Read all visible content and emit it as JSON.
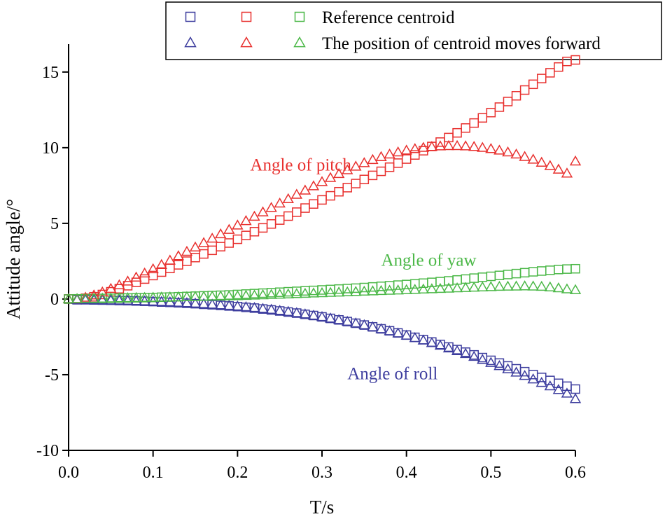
{
  "chart_data": {
    "type": "scatter",
    "title": "",
    "xlabel": "T/s",
    "ylabel": "Attitude angle/°",
    "xlim": [
      0,
      0.6
    ],
    "ylim": [
      -10,
      18
    ],
    "xticks": [
      0,
      0.1,
      0.2,
      0.3,
      0.4,
      0.5,
      0.6
    ],
    "xtick_labels": [
      "0.0",
      "0.1",
      "0.2",
      "0.3",
      "0.4",
      "0.5",
      "0.6"
    ],
    "yticks": [
      -10,
      -5,
      0,
      5,
      10,
      15
    ],
    "ytick_labels": [
      "-10",
      "-5",
      "0",
      "5",
      "10",
      "15"
    ],
    "grid": false,
    "legend_position": "top-right",
    "legend_rows": [
      {
        "text": "Reference centroid",
        "marker": "square"
      },
      {
        "text": "The position of centroid moves forward",
        "marker": "triangle"
      }
    ],
    "colors": {
      "roll": "#3d3d9e",
      "pitch": "#e8302e",
      "yaw": "#4cb848"
    },
    "x": [
      0.0,
      0.01,
      0.02,
      0.03,
      0.04,
      0.05,
      0.06,
      0.07,
      0.08,
      0.09,
      0.1,
      0.11,
      0.12,
      0.13,
      0.14,
      0.15,
      0.16,
      0.17,
      0.18,
      0.19,
      0.2,
      0.21,
      0.22,
      0.23,
      0.24,
      0.25,
      0.26,
      0.27,
      0.28,
      0.29,
      0.3,
      0.31,
      0.32,
      0.33,
      0.34,
      0.35,
      0.36,
      0.37,
      0.38,
      0.39,
      0.4,
      0.41,
      0.42,
      0.43,
      0.44,
      0.45,
      0.46,
      0.47,
      0.48,
      0.49,
      0.5,
      0.51,
      0.52,
      0.53,
      0.54,
      0.55,
      0.56,
      0.57,
      0.58,
      0.59,
      0.6
    ],
    "series": [
      {
        "group": "roll",
        "marker": "square",
        "values": [
          0.0,
          -0.05,
          -0.05,
          -0.06,
          -0.07,
          -0.08,
          -0.1,
          -0.11,
          -0.13,
          -0.15,
          -0.17,
          -0.2,
          -0.22,
          -0.25,
          -0.28,
          -0.31,
          -0.35,
          -0.38,
          -0.42,
          -0.46,
          -0.5,
          -0.55,
          -0.6,
          -0.66,
          -0.72,
          -0.79,
          -0.86,
          -0.93,
          -1.01,
          -1.09,
          -1.18,
          -1.28,
          -1.38,
          -1.49,
          -1.6,
          -1.72,
          -1.84,
          -1.97,
          -2.1,
          -2.24,
          -2.38,
          -2.53,
          -2.68,
          -2.84,
          -3.0,
          -3.17,
          -3.34,
          -3.51,
          -3.69,
          -3.87,
          -4.05,
          -4.23,
          -4.42,
          -4.61,
          -4.8,
          -4.99,
          -5.18,
          -5.38,
          -5.57,
          -5.76,
          -5.95
        ]
      },
      {
        "group": "pitch",
        "marker": "square",
        "values": [
          0.0,
          0.0,
          0.05,
          0.15,
          0.3,
          0.48,
          0.68,
          0.88,
          1.1,
          1.32,
          1.55,
          1.78,
          2.02,
          2.26,
          2.5,
          2.74,
          2.98,
          3.22,
          3.46,
          3.7,
          3.95,
          4.2,
          4.45,
          4.7,
          4.96,
          5.22,
          5.48,
          5.74,
          6.01,
          6.28,
          6.55,
          6.82,
          7.09,
          7.36,
          7.63,
          7.9,
          8.17,
          8.44,
          8.71,
          8.98,
          9.25,
          9.52,
          9.8,
          10.08,
          10.37,
          10.67,
          10.98,
          11.3,
          11.63,
          11.97,
          12.32,
          12.68,
          13.05,
          13.43,
          13.81,
          14.19,
          14.57,
          14.95,
          15.33,
          15.7,
          15.8
        ]
      },
      {
        "group": "yaw",
        "marker": "square",
        "values": [
          0.0,
          0.01,
          0.02,
          0.03,
          0.04,
          0.05,
          0.06,
          0.07,
          0.08,
          0.09,
          0.1,
          0.12,
          0.13,
          0.15,
          0.17,
          0.19,
          0.21,
          0.23,
          0.25,
          0.27,
          0.3,
          0.33,
          0.36,
          0.39,
          0.42,
          0.45,
          0.48,
          0.51,
          0.54,
          0.57,
          0.6,
          0.63,
          0.66,
          0.69,
          0.72,
          0.76,
          0.8,
          0.84,
          0.88,
          0.92,
          0.96,
          1.0,
          1.05,
          1.1,
          1.15,
          1.2,
          1.26,
          1.32,
          1.38,
          1.44,
          1.5,
          1.56,
          1.62,
          1.68,
          1.74,
          1.8,
          1.85,
          1.9,
          1.95,
          1.98,
          2.0
        ]
      },
      {
        "group": "roll",
        "marker": "triangle",
        "values": [
          0.0,
          -0.05,
          -0.05,
          -0.06,
          -0.07,
          -0.08,
          -0.09,
          -0.1,
          -0.12,
          -0.14,
          -0.16,
          -0.18,
          -0.2,
          -0.23,
          -0.26,
          -0.29,
          -0.32,
          -0.36,
          -0.4,
          -0.44,
          -0.48,
          -0.53,
          -0.58,
          -0.64,
          -0.7,
          -0.77,
          -0.84,
          -0.92,
          -1.0,
          -1.09,
          -1.18,
          -1.28,
          -1.38,
          -1.49,
          -1.6,
          -1.72,
          -1.85,
          -1.98,
          -2.12,
          -2.26,
          -2.41,
          -2.57,
          -2.73,
          -2.9,
          -3.07,
          -3.25,
          -3.43,
          -3.62,
          -3.81,
          -4.01,
          -4.21,
          -4.42,
          -4.63,
          -4.85,
          -5.07,
          -5.3,
          -5.53,
          -5.76,
          -6.0,
          -6.24,
          -6.6
        ]
      },
      {
        "group": "pitch",
        "marker": "triangle",
        "values": [
          0.0,
          0.0,
          0.1,
          0.25,
          0.45,
          0.68,
          0.92,
          1.17,
          1.43,
          1.7,
          1.98,
          2.26,
          2.55,
          2.84,
          3.13,
          3.42,
          3.71,
          4.0,
          4.29,
          4.58,
          4.87,
          5.16,
          5.45,
          5.74,
          6.03,
          6.32,
          6.61,
          6.9,
          7.18,
          7.46,
          7.74,
          8.01,
          8.27,
          8.52,
          8.76,
          8.99,
          9.2,
          9.39,
          9.56,
          9.7,
          9.82,
          9.92,
          10.0,
          10.06,
          10.1,
          10.12,
          10.12,
          10.1,
          10.06,
          10.0,
          9.92,
          9.82,
          9.7,
          9.56,
          9.4,
          9.22,
          9.02,
          8.8,
          8.56,
          8.3,
          9.1
        ]
      },
      {
        "group": "yaw",
        "marker": "triangle",
        "values": [
          0.0,
          0.01,
          0.02,
          0.03,
          0.04,
          0.05,
          0.06,
          0.07,
          0.08,
          0.09,
          0.1,
          0.11,
          0.12,
          0.13,
          0.14,
          0.15,
          0.16,
          0.17,
          0.18,
          0.19,
          0.2,
          0.22,
          0.24,
          0.26,
          0.28,
          0.3,
          0.32,
          0.34,
          0.36,
          0.38,
          0.4,
          0.42,
          0.44,
          0.46,
          0.48,
          0.5,
          0.52,
          0.54,
          0.56,
          0.58,
          0.6,
          0.62,
          0.64,
          0.66,
          0.68,
          0.7,
          0.72,
          0.74,
          0.76,
          0.78,
          0.8,
          0.82,
          0.83,
          0.84,
          0.85,
          0.84,
          0.82,
          0.78,
          0.72,
          0.65,
          0.6
        ]
      }
    ],
    "annotations": [
      {
        "text": "Angle of pitch",
        "group": "pitch",
        "x": 0.215,
        "y": 8.5
      },
      {
        "text": "Angle of yaw",
        "group": "yaw",
        "x": 0.37,
        "y": 2.2
      },
      {
        "text": "Angle of roll",
        "group": "roll",
        "x": 0.33,
        "y": -5.3
      }
    ]
  }
}
